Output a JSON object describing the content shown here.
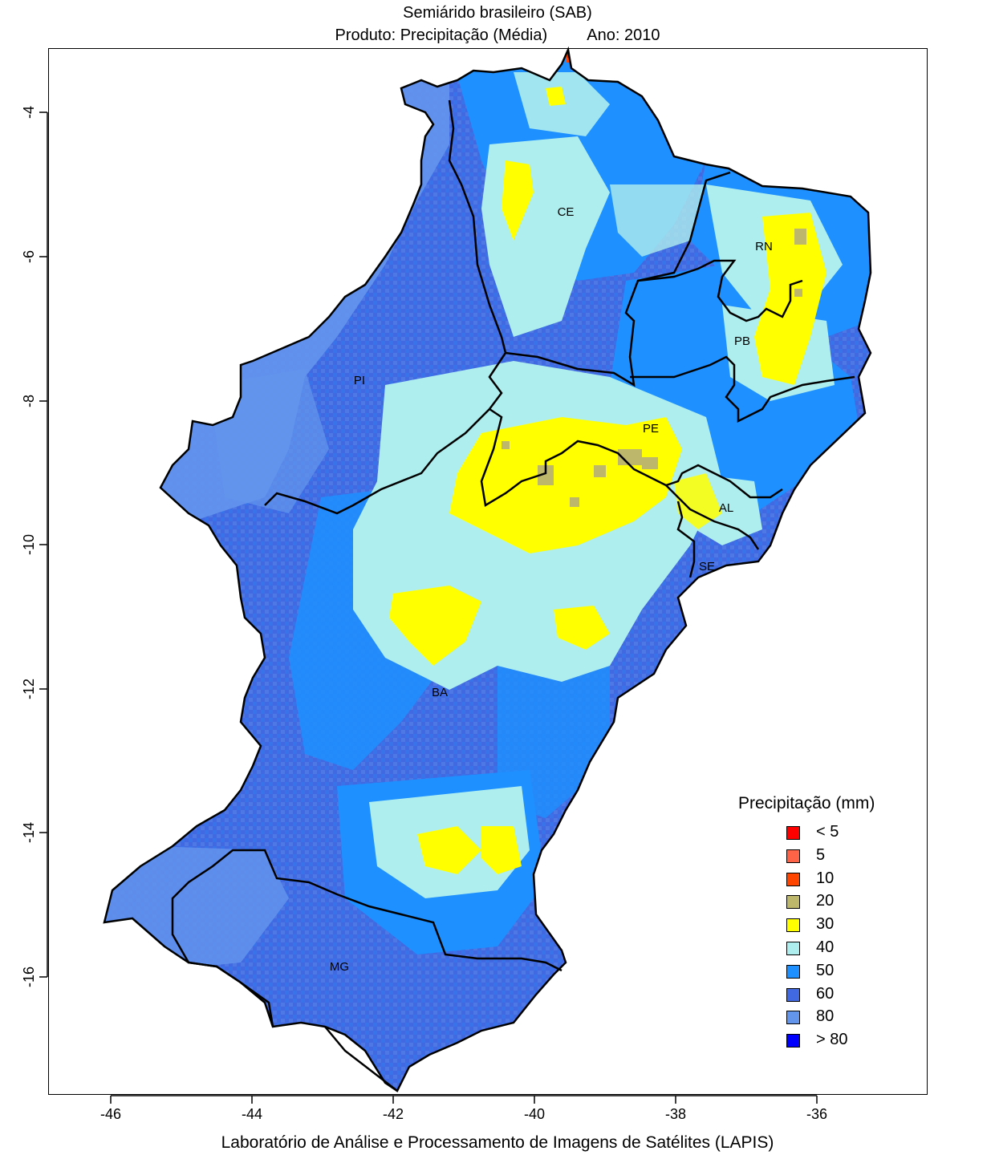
{
  "header": {
    "title": "Semiárido brasileiro (SAB)",
    "product_label": "Produto: Precipitação (Média)",
    "year_label": "Ano:  2010"
  },
  "footer": "Laboratório de Análise e Processamento de Imagens de Satélites (LAPIS)",
  "axes": {
    "x_ticks": [
      "-46",
      "-44",
      "-42",
      "-40",
      "-38",
      "-36"
    ],
    "y_ticks": [
      "-4",
      "-6",
      "-8",
      "-10",
      "-12",
      "-14",
      "-16"
    ]
  },
  "legend": {
    "title": "Precipitação (mm)",
    "items": [
      {
        "label": "< 5",
        "color": "#ff0000"
      },
      {
        "label": "5",
        "color": "#ff6347"
      },
      {
        "label": "10",
        "color": "#ff4500"
      },
      {
        "label": "20",
        "color": "#bdb76b"
      },
      {
        "label": "30",
        "color": "#ffff00"
      },
      {
        "label": "40",
        "color": "#afeeee"
      },
      {
        "label": "50",
        "color": "#1e90ff"
      },
      {
        "label": "60",
        "color": "#4169e1"
      },
      {
        "label": "80",
        "color": "#6495ed"
      },
      {
        "label": "> 80",
        "color": "#0000ff"
      }
    ]
  },
  "states": [
    {
      "label": "CE"
    },
    {
      "label": "RN"
    },
    {
      "label": "PB"
    },
    {
      "label": "PI"
    },
    {
      "label": "PE"
    },
    {
      "label": "AL"
    },
    {
      "label": "SE"
    },
    {
      "label": "BA"
    },
    {
      "label": "MG"
    }
  ]
}
